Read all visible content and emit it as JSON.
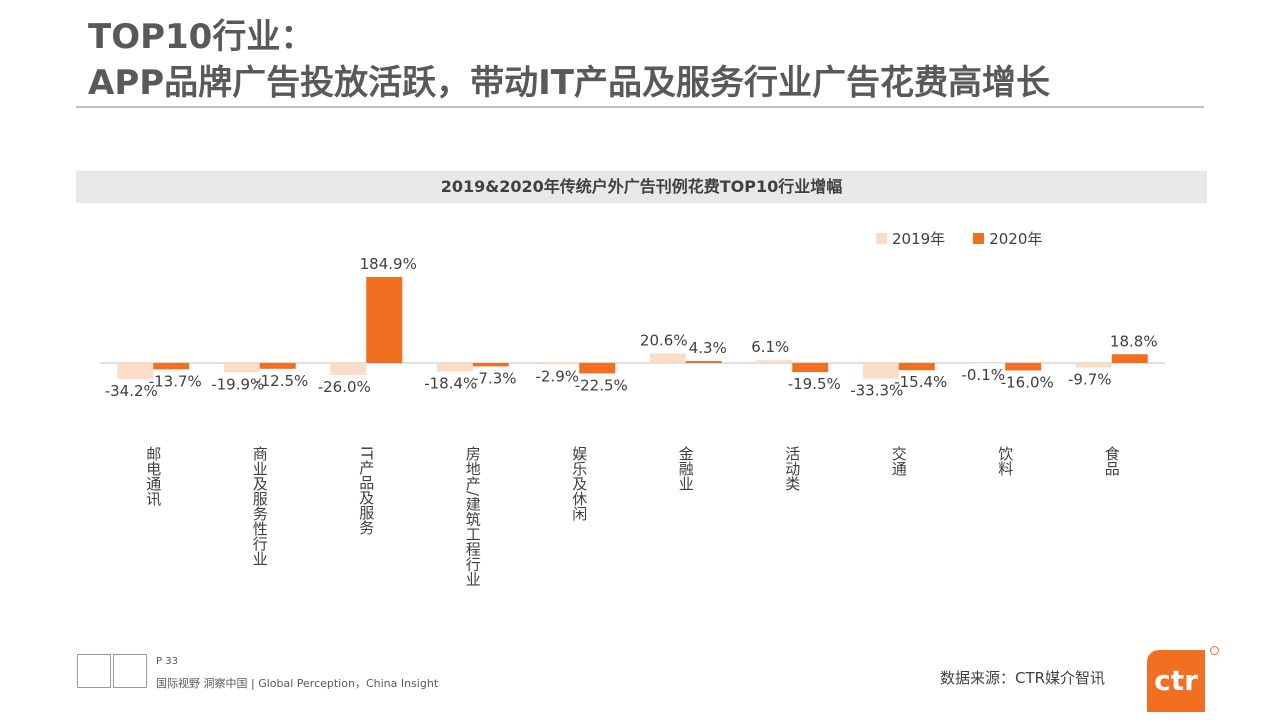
{
  "page": {
    "title_lines": [
      "TOP10行业：",
      "APP品牌广告投放活跃，带动IT产品及服务行业广告花费高增长"
    ],
    "footer": {
      "page_number": "P 33",
      "tagline": "国际视野  洞察中国 | Global Perception，China Insight",
      "source": "数据来源：CTR媒介智讯",
      "logo_text": "ctr"
    }
  },
  "colors": {
    "series_2019": "#fbdcc7",
    "series_2020": "#f26f21",
    "axis": "#bfbfbf",
    "title_text": "#595959",
    "logo": "#f26f21"
  },
  "chart_data": {
    "type": "bar",
    "title": "2019&2020年传统户外广告刊例花费TOP10行业增幅",
    "categories": [
      "邮电通讯",
      "商业及服务性行业",
      "IT产品及服务",
      "房地产/建筑工程行业",
      "娱乐及休闲",
      "金融业",
      "活动类",
      "交通",
      "饮料",
      "食品"
    ],
    "series": [
      {
        "name": "2019年",
        "values": [
          -34.2,
          -19.9,
          -26.0,
          -18.4,
          -2.9,
          20.6,
          6.1,
          -33.3,
          -0.1,
          -9.7
        ],
        "labels": [
          "-34.2%",
          "-19.9%",
          "-26.0%",
          "-18.4%",
          "-2.9%",
          "20.6%",
          "6.1%",
          "-33.3%",
          "-0.1%",
          "-9.7%"
        ]
      },
      {
        "name": "2020年",
        "values": [
          -13.7,
          -12.5,
          184.9,
          -7.3,
          -22.5,
          4.3,
          -19.5,
          -15.4,
          -16.0,
          18.8
        ],
        "labels": [
          "-13.7%",
          "-12.5%",
          "184.9%",
          "-7.3%",
          "-22.5%",
          "4.3%",
          "-19.5%",
          "-15.4%",
          "-16.0%",
          "18.8%"
        ]
      }
    ],
    "legend_position": "top-right",
    "grid": false,
    "ylim": [
      -45,
      190
    ]
  }
}
